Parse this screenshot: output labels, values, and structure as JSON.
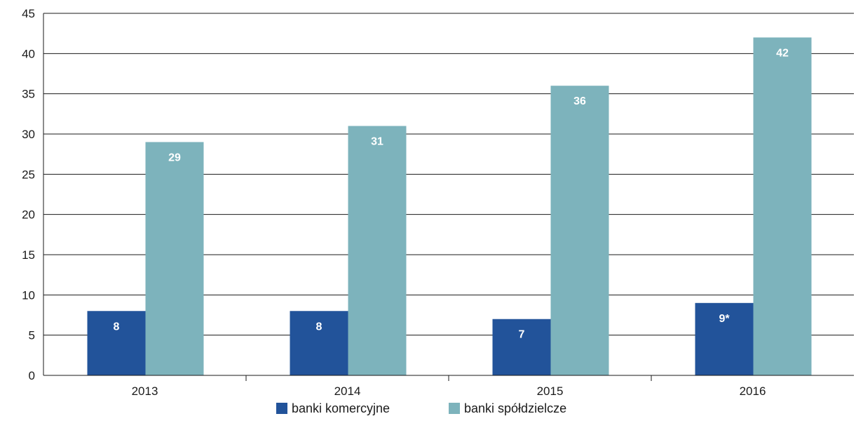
{
  "chart_data": {
    "type": "bar",
    "categories": [
      "2013",
      "2014",
      "2015",
      "2016"
    ],
    "series": [
      {
        "name": "banki komercyjne",
        "values": [
          8,
          8,
          7,
          9
        ],
        "labels": [
          "8",
          "8",
          "7",
          "9*"
        ],
        "color": "#22539a"
      },
      {
        "name": "banki spółdzielcze",
        "values": [
          29,
          31,
          36,
          42
        ],
        "labels": [
          "29",
          "31",
          "36",
          "42"
        ],
        "color": "#7db3bc"
      }
    ],
    "title": "",
    "xlabel": "",
    "ylabel": "",
    "ylim": [
      0,
      45
    ],
    "yticks": [
      0,
      5,
      10,
      15,
      20,
      25,
      30,
      35,
      40,
      45
    ],
    "grid": true,
    "legend_position": "bottom"
  }
}
